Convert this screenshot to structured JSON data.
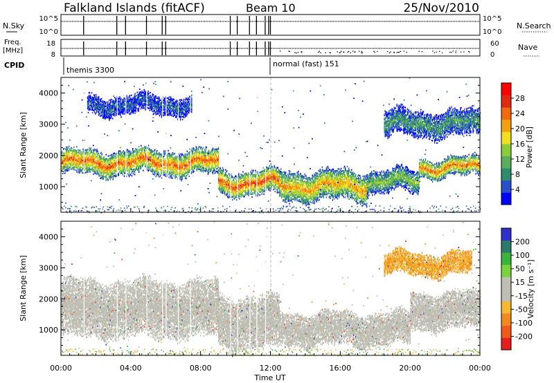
{
  "header": {
    "station": "Falkland Islands (fitACF)",
    "beam": "Beam 10",
    "date": "25/Nov/2010"
  },
  "param_panels": {
    "nsky": {
      "label": "N.Sky",
      "ticks": [
        "10^5",
        "10^0"
      ]
    },
    "nsearch": {
      "label": "N.Search",
      "ticks": [
        "10^5",
        "10^0"
      ]
    },
    "freq": {
      "label_top": "Freq.",
      "label_bottom": "[MHz]",
      "ticks": [
        "18",
        "8"
      ]
    },
    "nave": {
      "label": "Nave",
      "ticks": [
        "60",
        "0"
      ]
    },
    "cpid": {
      "label": "CPID",
      "programs": [
        "themis 3300",
        "normal (fast) 151"
      ]
    }
  },
  "colors": {
    "power": [
      "#0000ff",
      "#2850c8",
      "#2e8b6e",
      "#5aae5a",
      "#8ccc3c",
      "#f0e020",
      "#f5a010",
      "#f26a10",
      "#e02a10",
      "#ff0000"
    ],
    "velocity": [
      "#3030c8",
      "#2e7a6a",
      "#3cb43c",
      "#7ad23c",
      "#bebeb4",
      "#bebeb4",
      "#f5b830",
      "#f08a20",
      "#ee5a1e",
      "#e61e1e"
    ]
  },
  "chart_data": [
    {
      "type": "heatmap",
      "name": "power-panel",
      "ylabel": "Slant Range [km]",
      "ylim": [
        180,
        4500
      ],
      "xlim": [
        0,
        24
      ],
      "yticks": [
        1000,
        2000,
        3000,
        4000
      ],
      "ytick_labels": [
        "1000",
        "2000",
        "3000",
        "4000"
      ],
      "colorbar": {
        "label": "Power [dB]",
        "min": 0,
        "max": 32,
        "ticks": [
          4,
          8,
          12,
          16,
          20,
          24,
          28
        ],
        "tick_labels": [
          "4",
          "8",
          "12",
          "16",
          "20",
          "24",
          "28"
        ]
      },
      "scatter_bands": [
        {
          "t_start": 0.0,
          "t_end": 9.0,
          "range_center": 1750,
          "range_halfwidth": 330,
          "core_dB": 25
        },
        {
          "t_start": 9.0,
          "t_end": 12.5,
          "range_center": 1100,
          "range_halfwidth": 330,
          "core_dB": 26
        },
        {
          "t_start": 12.5,
          "t_end": 17.5,
          "range_center": 1000,
          "range_halfwidth": 400,
          "core_dB": 22
        },
        {
          "t_start": 17.5,
          "t_end": 20.5,
          "range_center": 1150,
          "range_halfwidth": 300,
          "core_dB": 14
        },
        {
          "t_start": 20.5,
          "t_end": 24.0,
          "range_center": 1600,
          "range_halfwidth": 250,
          "core_dB": 24
        },
        {
          "t_start": 1.5,
          "t_end": 7.5,
          "range_center": 3600,
          "range_halfwidth": 250,
          "core_dB": 6
        },
        {
          "t_start": 18.5,
          "t_end": 24.0,
          "range_center": 3000,
          "range_halfwidth": 350,
          "core_dB": 10
        }
      ]
    },
    {
      "type": "heatmap",
      "name": "velocity-panel",
      "ylabel": "Slant Range [km]",
      "xlabel": "Time UT",
      "ylim": [
        180,
        4500
      ],
      "xlim": [
        0,
        24
      ],
      "yticks": [
        1000,
        2000,
        3000,
        4000
      ],
      "ytick_labels": [
        "1000",
        "2000",
        "3000",
        "4000"
      ],
      "xticks": [
        0,
        4,
        8,
        12,
        16,
        20,
        24
      ],
      "xtick_labels": [
        "00:00",
        "04:00",
        "08:00",
        "12:00",
        "16:00",
        "20:00",
        "00:00"
      ],
      "colorbar": {
        "label": "Velocity [m s⁻¹]",
        "ticks": [
          200,
          100,
          50,
          15,
          -15,
          -50,
          -100,
          -200
        ],
        "tick_labels": [
          "200",
          "100",
          "50",
          "15",
          "-15",
          "-50",
          "-100",
          "-200"
        ]
      },
      "scatter_bands": [
        {
          "t_start": 0.0,
          "t_end": 9.0,
          "range_center": 1650,
          "range_halfwidth": 750,
          "velocity_ms": 0
        },
        {
          "t_start": 9.0,
          "t_end": 12.5,
          "range_center": 1200,
          "range_halfwidth": 700,
          "velocity_ms": 0
        },
        {
          "t_start": 12.5,
          "t_end": 20.0,
          "range_center": 1000,
          "range_halfwidth": 450,
          "velocity_ms": 0
        },
        {
          "t_start": 20.0,
          "t_end": 24.0,
          "range_center": 1600,
          "range_halfwidth": 500,
          "velocity_ms": 0
        },
        {
          "t_start": 18.5,
          "t_end": 23.5,
          "range_center": 3100,
          "range_halfwidth": 300,
          "velocity_ms": -30
        }
      ]
    }
  ]
}
